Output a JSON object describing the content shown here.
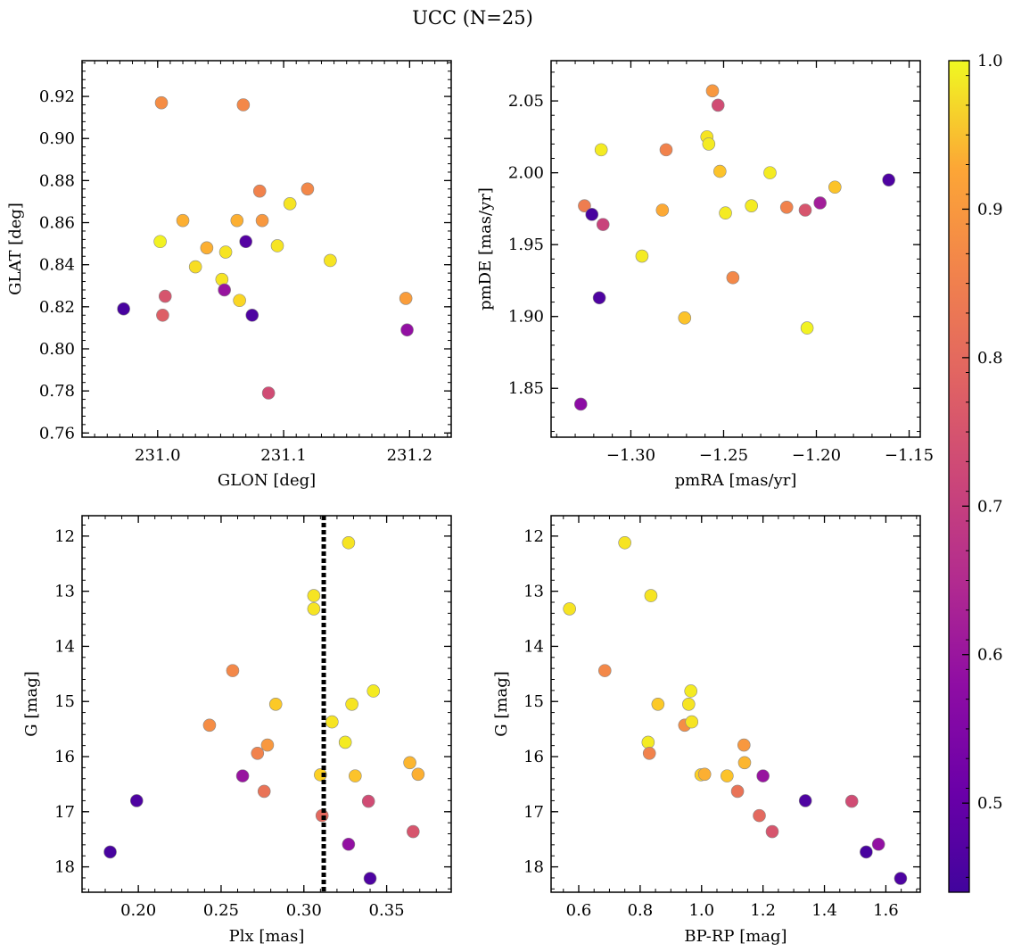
{
  "suptitle": "UCC (N=25)",
  "colorbar": {
    "range": [
      0.44,
      1.0
    ],
    "ticks": [
      0.5,
      0.6,
      0.7,
      0.8,
      0.9,
      1.0
    ],
    "tick_labels": [
      "0.5",
      "0.6",
      "0.7",
      "0.8",
      "0.9",
      "1.0"
    ],
    "colormap": "plasma"
  },
  "chart_data": [
    {
      "type": "scatter",
      "xlabel": "GLON [deg]",
      "ylabel": "GLAT [deg]",
      "xlim": [
        230.94,
        231.233
      ],
      "ylim": [
        0.758,
        0.937
      ],
      "xticks": [
        231.0,
        231.1,
        231.2
      ],
      "xtick_labels": [
        "231.0",
        "231.1",
        "231.2"
      ],
      "yticks": [
        0.76,
        0.78,
        0.8,
        0.82,
        0.84,
        0.86,
        0.88,
        0.9,
        0.92
      ],
      "ytick_labels": [
        "0.76",
        "0.78",
        "0.80",
        "0.82",
        "0.84",
        "0.86",
        "0.88",
        "0.90",
        "0.92"
      ],
      "points": [
        {
          "x": 231.003,
          "y": 0.917,
          "c": 0.83
        },
        {
          "x": 231.068,
          "y": 0.916,
          "c": 0.82
        },
        {
          "x": 231.081,
          "y": 0.875,
          "c": 0.81
        },
        {
          "x": 231.119,
          "y": 0.876,
          "c": 0.82
        },
        {
          "x": 231.105,
          "y": 0.869,
          "c": 0.97
        },
        {
          "x": 231.02,
          "y": 0.861,
          "c": 0.89
        },
        {
          "x": 231.063,
          "y": 0.861,
          "c": 0.89
        },
        {
          "x": 231.083,
          "y": 0.861,
          "c": 0.85
        },
        {
          "x": 231.002,
          "y": 0.851,
          "c": 0.99
        },
        {
          "x": 231.07,
          "y": 0.851,
          "c": 0.47
        },
        {
          "x": 231.039,
          "y": 0.848,
          "c": 0.89
        },
        {
          "x": 231.054,
          "y": 0.846,
          "c": 0.97
        },
        {
          "x": 231.095,
          "y": 0.849,
          "c": 0.97
        },
        {
          "x": 231.137,
          "y": 0.842,
          "c": 0.97
        },
        {
          "x": 231.03,
          "y": 0.839,
          "c": 0.96
        },
        {
          "x": 231.051,
          "y": 0.833,
          "c": 0.97
        },
        {
          "x": 231.053,
          "y": 0.828,
          "c": 0.58
        },
        {
          "x": 231.006,
          "y": 0.825,
          "c": 0.72
        },
        {
          "x": 231.065,
          "y": 0.823,
          "c": 0.95
        },
        {
          "x": 231.197,
          "y": 0.824,
          "c": 0.86
        },
        {
          "x": 230.973,
          "y": 0.819,
          "c": 0.45
        },
        {
          "x": 231.004,
          "y": 0.816,
          "c": 0.74
        },
        {
          "x": 231.075,
          "y": 0.816,
          "c": 0.46
        },
        {
          "x": 231.198,
          "y": 0.809,
          "c": 0.57
        },
        {
          "x": 231.088,
          "y": 0.779,
          "c": 0.7
        }
      ]
    },
    {
      "type": "scatter",
      "xlabel": "pmRA [mas/yr]",
      "ylabel": "pmDE [mas/yr]",
      "xlim": [
        -1.343,
        -1.144
      ],
      "ylim": [
        1.816,
        2.078
      ],
      "xticks": [
        -1.3,
        -1.25,
        -1.2,
        -1.15
      ],
      "xtick_labels": [
        "−1.30",
        "−1.25",
        "−1.20",
        "−1.15"
      ],
      "yticks": [
        1.85,
        1.9,
        1.95,
        2.0,
        2.05
      ],
      "ytick_labels": [
        "1.85",
        "1.90",
        "1.95",
        "2.00",
        "2.05"
      ],
      "points": [
        {
          "x": -1.256,
          "y": 2.057,
          "c": 0.85
        },
        {
          "x": -1.253,
          "y": 2.047,
          "c": 0.7
        },
        {
          "x": -1.259,
          "y": 2.025,
          "c": 0.97
        },
        {
          "x": -1.258,
          "y": 2.02,
          "c": 0.98
        },
        {
          "x": -1.316,
          "y": 2.016,
          "c": 0.98
        },
        {
          "x": -1.281,
          "y": 2.016,
          "c": 0.81
        },
        {
          "x": -1.252,
          "y": 2.001,
          "c": 0.92
        },
        {
          "x": -1.225,
          "y": 2.0,
          "c": 0.98
        },
        {
          "x": -1.161,
          "y": 1.995,
          "c": 0.46
        },
        {
          "x": -1.19,
          "y": 1.99,
          "c": 0.92
        },
        {
          "x": -1.198,
          "y": 1.979,
          "c": 0.6
        },
        {
          "x": -1.235,
          "y": 1.977,
          "c": 0.98
        },
        {
          "x": -1.216,
          "y": 1.976,
          "c": 0.81
        },
        {
          "x": -1.206,
          "y": 1.974,
          "c": 0.72
        },
        {
          "x": -1.325,
          "y": 1.977,
          "c": 0.8
        },
        {
          "x": -1.283,
          "y": 1.974,
          "c": 0.88
        },
        {
          "x": -1.249,
          "y": 1.972,
          "c": 0.98
        },
        {
          "x": -1.321,
          "y": 1.971,
          "c": 0.45
        },
        {
          "x": -1.315,
          "y": 1.964,
          "c": 0.68
        },
        {
          "x": -1.294,
          "y": 1.942,
          "c": 0.98
        },
        {
          "x": -1.245,
          "y": 1.927,
          "c": 0.82
        },
        {
          "x": -1.317,
          "y": 1.913,
          "c": 0.46
        },
        {
          "x": -1.271,
          "y": 1.899,
          "c": 0.92
        },
        {
          "x": -1.205,
          "y": 1.892,
          "c": 0.99
        },
        {
          "x": -1.327,
          "y": 1.839,
          "c": 0.56
        }
      ]
    },
    {
      "type": "scatter",
      "xlabel": "Plx [mas]",
      "ylabel": "G [mag]",
      "xlim": [
        0.166,
        0.389
      ],
      "ylim": [
        18.46,
        11.63
      ],
      "y_inverted": true,
      "vline": 0.312,
      "xticks": [
        0.2,
        0.25,
        0.3,
        0.35
      ],
      "xtick_labels": [
        "0.20",
        "0.25",
        "0.30",
        "0.35"
      ],
      "yticks": [
        12,
        13,
        14,
        15,
        16,
        17,
        18
      ],
      "ytick_labels": [
        "12",
        "13",
        "14",
        "15",
        "16",
        "17",
        "18"
      ],
      "points": [
        {
          "x": 0.327,
          "y": 12.12,
          "c": 0.97
        },
        {
          "x": 0.306,
          "y": 13.08,
          "c": 0.97
        },
        {
          "x": 0.306,
          "y": 13.32,
          "c": 0.97
        },
        {
          "x": 0.257,
          "y": 14.44,
          "c": 0.82
        },
        {
          "x": 0.342,
          "y": 14.81,
          "c": 0.98
        },
        {
          "x": 0.283,
          "y": 15.05,
          "c": 0.93
        },
        {
          "x": 0.329,
          "y": 15.05,
          "c": 0.97
        },
        {
          "x": 0.243,
          "y": 15.43,
          "c": 0.83
        },
        {
          "x": 0.317,
          "y": 15.37,
          "c": 0.97
        },
        {
          "x": 0.325,
          "y": 15.74,
          "c": 0.98
        },
        {
          "x": 0.278,
          "y": 15.79,
          "c": 0.85
        },
        {
          "x": 0.272,
          "y": 15.94,
          "c": 0.81
        },
        {
          "x": 0.364,
          "y": 16.11,
          "c": 0.9
        },
        {
          "x": 0.263,
          "y": 16.35,
          "c": 0.58
        },
        {
          "x": 0.31,
          "y": 16.33,
          "c": 0.94
        },
        {
          "x": 0.331,
          "y": 16.35,
          "c": 0.92
        },
        {
          "x": 0.369,
          "y": 16.32,
          "c": 0.89
        },
        {
          "x": 0.276,
          "y": 16.63,
          "c": 0.78
        },
        {
          "x": 0.199,
          "y": 16.8,
          "c": 0.46
        },
        {
          "x": 0.339,
          "y": 16.81,
          "c": 0.7
        },
        {
          "x": 0.311,
          "y": 17.07,
          "c": 0.76
        },
        {
          "x": 0.366,
          "y": 17.36,
          "c": 0.72
        },
        {
          "x": 0.327,
          "y": 17.59,
          "c": 0.57
        },
        {
          "x": 0.183,
          "y": 17.73,
          "c": 0.45
        },
        {
          "x": 0.34,
          "y": 18.21,
          "c": 0.46
        }
      ]
    },
    {
      "type": "scatter",
      "xlabel": "BP-RP [mag]",
      "ylabel": "G [mag]",
      "xlim": [
        0.51,
        1.712
      ],
      "ylim": [
        18.46,
        11.63
      ],
      "y_inverted": true,
      "xticks": [
        0.6,
        0.8,
        1.0,
        1.2,
        1.4,
        1.6
      ],
      "xtick_labels": [
        "0.6",
        "0.8",
        "1.0",
        "1.2",
        "1.4",
        "1.6"
      ],
      "yticks": [
        12,
        13,
        14,
        15,
        16,
        17,
        18
      ],
      "ytick_labels": [
        "12",
        "13",
        "14",
        "15",
        "16",
        "17",
        "18"
      ],
      "points": [
        {
          "x": 0.75,
          "y": 12.12,
          "c": 0.97
        },
        {
          "x": 0.835,
          "y": 13.08,
          "c": 0.97
        },
        {
          "x": 0.57,
          "y": 13.32,
          "c": 0.97
        },
        {
          "x": 0.685,
          "y": 14.44,
          "c": 0.82
        },
        {
          "x": 0.965,
          "y": 14.81,
          "c": 0.98
        },
        {
          "x": 0.858,
          "y": 15.05,
          "c": 0.93
        },
        {
          "x": 0.958,
          "y": 15.05,
          "c": 0.97
        },
        {
          "x": 0.945,
          "y": 15.43,
          "c": 0.83
        },
        {
          "x": 0.968,
          "y": 15.37,
          "c": 0.97
        },
        {
          "x": 0.826,
          "y": 15.74,
          "c": 0.98
        },
        {
          "x": 1.138,
          "y": 15.79,
          "c": 0.85
        },
        {
          "x": 0.83,
          "y": 15.94,
          "c": 0.81
        },
        {
          "x": 1.14,
          "y": 16.11,
          "c": 0.9
        },
        {
          "x": 1.2,
          "y": 16.35,
          "c": 0.58
        },
        {
          "x": 0.998,
          "y": 16.33,
          "c": 0.94
        },
        {
          "x": 1.083,
          "y": 16.35,
          "c": 0.92
        },
        {
          "x": 1.01,
          "y": 16.32,
          "c": 0.89
        },
        {
          "x": 1.117,
          "y": 16.63,
          "c": 0.78
        },
        {
          "x": 1.338,
          "y": 16.8,
          "c": 0.46
        },
        {
          "x": 1.489,
          "y": 16.81,
          "c": 0.7
        },
        {
          "x": 1.188,
          "y": 17.07,
          "c": 0.76
        },
        {
          "x": 1.23,
          "y": 17.36,
          "c": 0.72
        },
        {
          "x": 1.576,
          "y": 17.59,
          "c": 0.57
        },
        {
          "x": 1.536,
          "y": 17.73,
          "c": 0.45
        },
        {
          "x": 1.648,
          "y": 18.21,
          "c": 0.46
        }
      ]
    }
  ]
}
